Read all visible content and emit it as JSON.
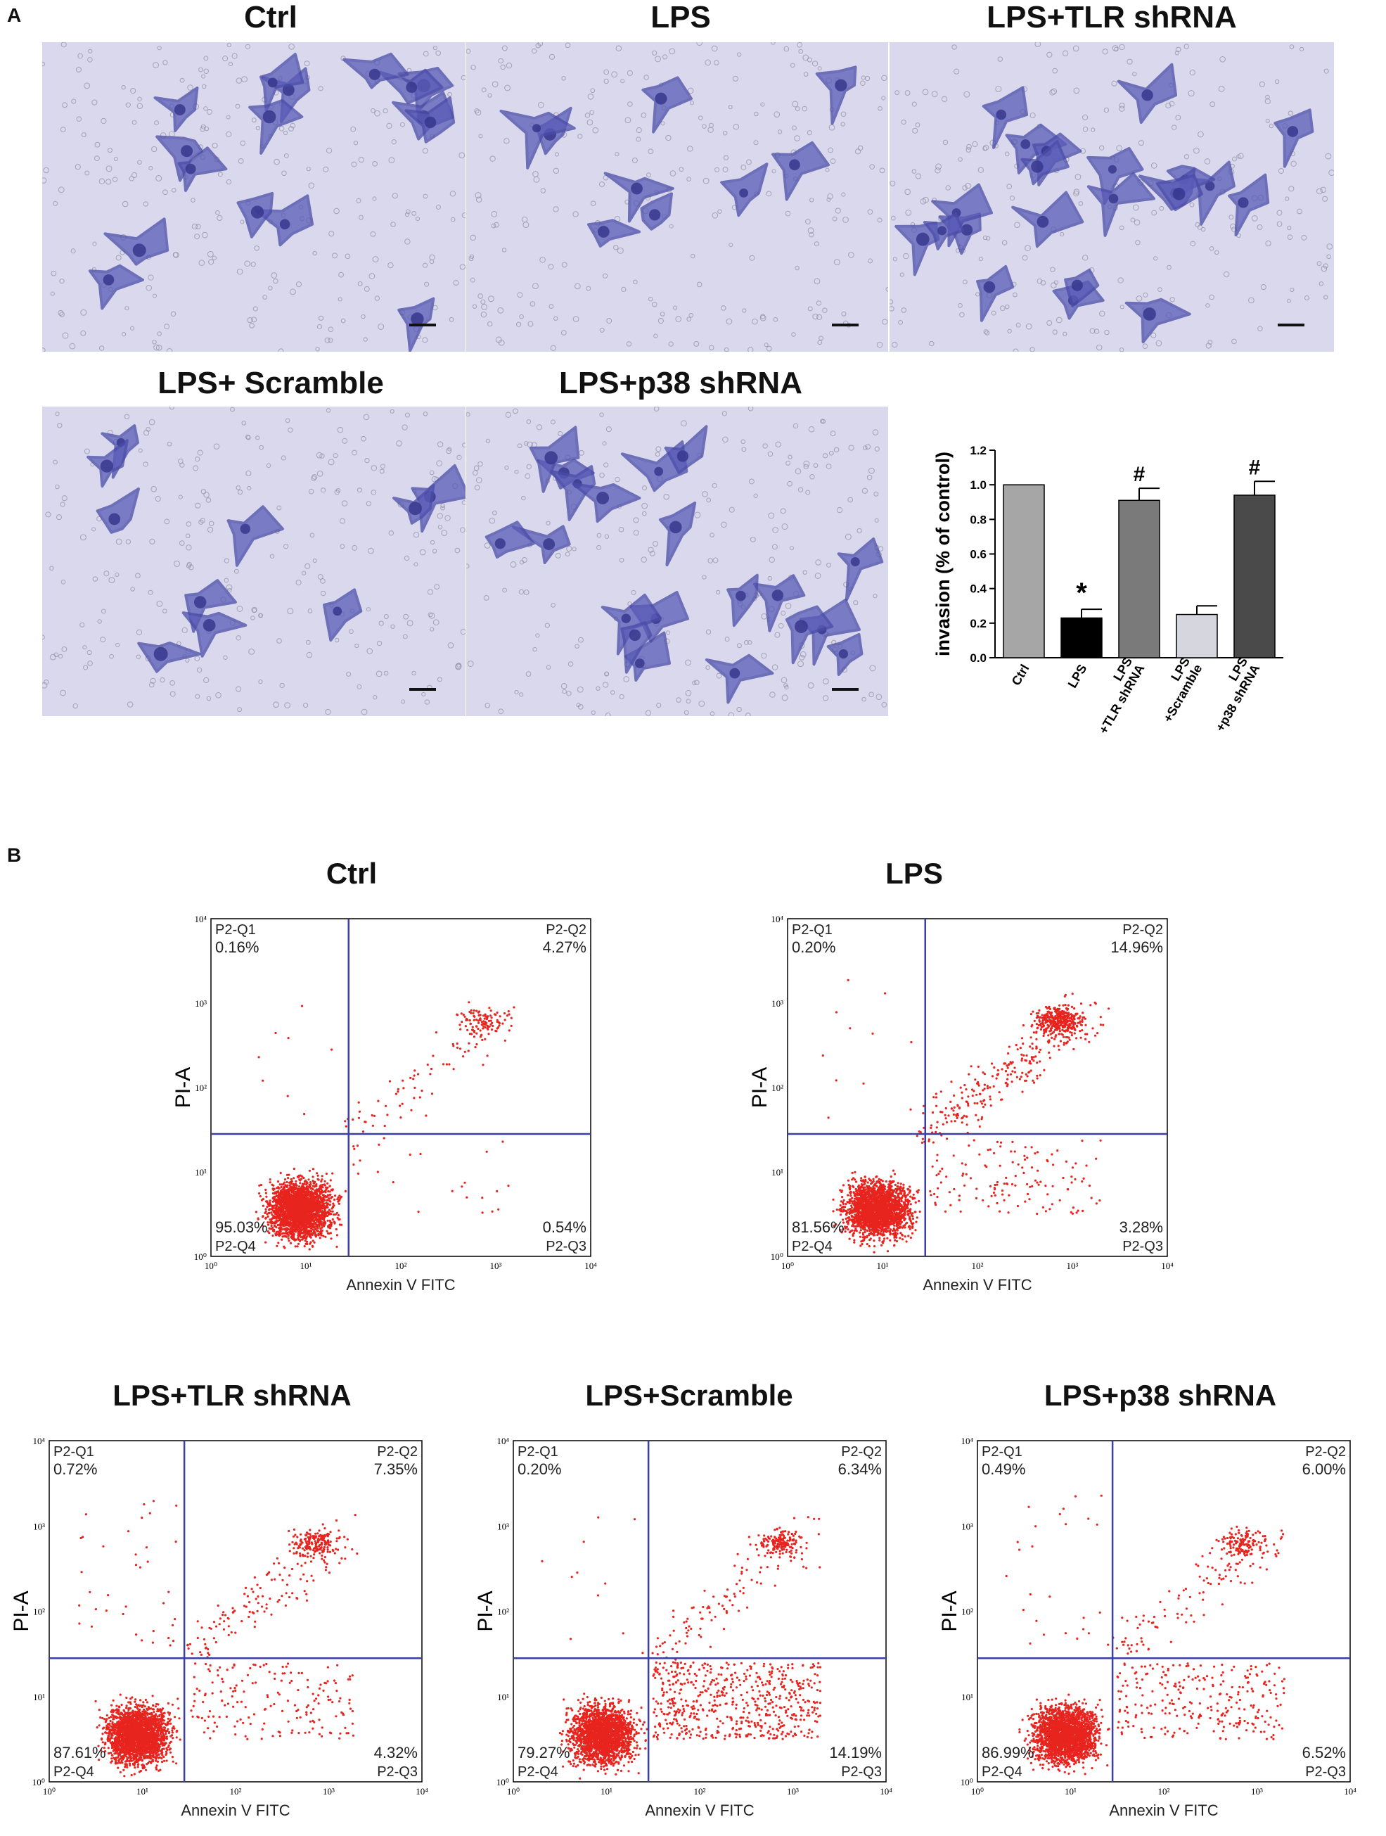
{
  "panel_a": {
    "letter": "A",
    "images": [
      {
        "title": "Ctrl"
      },
      {
        "title": "LPS"
      },
      {
        "title": "LPS+TLR shRNA"
      },
      {
        "title": "LPS+ Scramble"
      },
      {
        "title": "LPS+p38 shRNA"
      }
    ]
  },
  "panel_b": {
    "letter": "B",
    "plots": [
      {
        "title": "Ctrl",
        "q1_label": "P2-Q1",
        "q1": "0.16%",
        "q2_label": "P2-Q2",
        "q2": "4.27%",
        "q3_label": "P2-Q3",
        "q3": "0.54%",
        "q4_label": "P2-Q4",
        "q4": "95.03%",
        "xlabel": "Annexin V FITC",
        "ylabel": "PI-A"
      },
      {
        "title": "LPS",
        "q1_label": "P2-Q1",
        "q1": "0.20%",
        "q2_label": "P2-Q2",
        "q2": "14.96%",
        "q3_label": "P2-Q3",
        "q3": "3.28%",
        "q4_label": "P2-Q4",
        "q4": "81.56%",
        "xlabel": "Annexin V FITC",
        "ylabel": "PI-A"
      },
      {
        "title": "LPS+TLR shRNA",
        "q1_label": "P2-Q1",
        "q1": "0.72%",
        "q2_label": "P2-Q2",
        "q2": "7.35%",
        "q3_label": "P2-Q3",
        "q3": "4.32%",
        "q4_label": "P2-Q4",
        "q4": "87.61%",
        "xlabel": "Annexin V FITC",
        "ylabel": "PI-A"
      },
      {
        "title": "LPS+Scramble",
        "q1_label": "P2-Q1",
        "q1": "0.20%",
        "q2_label": "P2-Q2",
        "q2": "6.34%",
        "q3_label": "P2-Q3",
        "q3": "14.19%",
        "q4_label": "P2-Q4",
        "q4": "79.27%",
        "xlabel": "Annexin V FITC",
        "ylabel": "PI-A"
      },
      {
        "title": "LPS+p38 shRNA",
        "q1_label": "P2-Q1",
        "q1": "0.49%",
        "q2_label": "P2-Q2",
        "q2": "6.00%",
        "q3_label": "P2-Q3",
        "q3": "6.52%",
        "q4_label": "P2-Q4",
        "q4": "86.99%",
        "xlabel": "Annexin V FITC",
        "ylabel": "PI-A"
      }
    ],
    "tick_labels": [
      "10⁰",
      "10¹",
      "10²",
      "10³",
      "10⁴"
    ]
  },
  "colors": {
    "dots": "#e8241f",
    "gate_lines": "#3b3fa3",
    "stain": "#5a5cb8",
    "background_stain": "#d9d8ec"
  },
  "chart_data": {
    "type": "bar",
    "title": "",
    "xlabel": "",
    "ylabel": "invasion (% of control)",
    "categories": [
      "Ctrl",
      "LPS",
      "LPS\n+TLR shRNA",
      "LPS\n+Scramble",
      "LPS\n+p38 shRNA"
    ],
    "values": [
      1.0,
      0.23,
      0.91,
      0.25,
      0.94
    ],
    "errors": [
      0.0,
      0.05,
      0.07,
      0.05,
      0.08
    ],
    "bar_colors": [
      "#a6a6a6",
      "#000000",
      "#7a7a7a",
      "#d6d6de",
      "#4a4a4a"
    ],
    "annotations": [
      "",
      "*",
      "#",
      "",
      "#"
    ],
    "ylim": [
      0.0,
      1.2
    ],
    "yticks": [
      "0.0",
      "0.2",
      "0.4",
      "0.6",
      "0.8",
      "1.0",
      "1.2"
    ],
    "grid": false
  }
}
